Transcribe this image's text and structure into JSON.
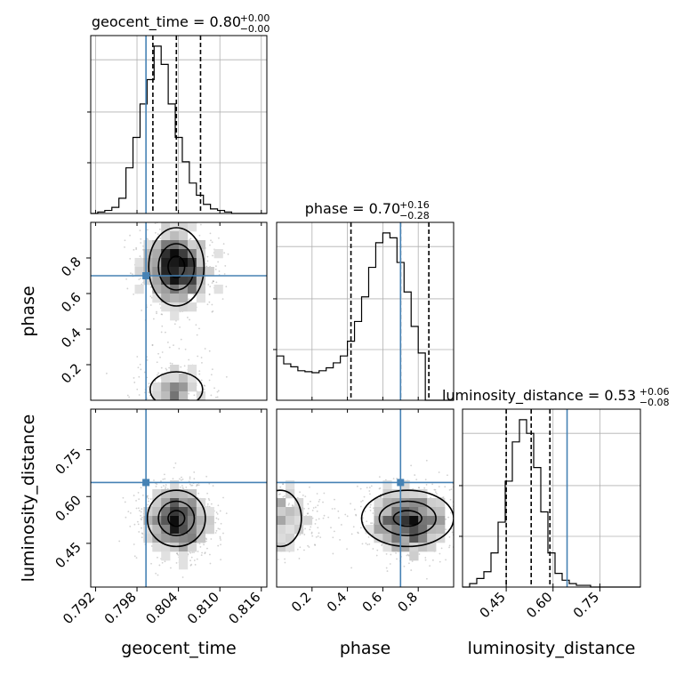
{
  "chart_data": {
    "type": "corner",
    "parameters": [
      "geocent_time",
      "phase",
      "luminosity_distance"
    ],
    "injected_values": {
      "geocent_time": 0.7993,
      "phase": 0.7,
      "luminosity_distance": 0.645
    },
    "titles": [
      {
        "param": "geocent_time",
        "text": "geocent_time = 0.80",
        "upper": "+0.00",
        "lower": "−0.00"
      },
      {
        "param": "phase",
        "text": "phase = 0.70",
        "upper": "+0.16",
        "lower": "−0.28"
      },
      {
        "param": "luminosity_distance",
        "text": "luminosity_distance = 0.53",
        "upper": "+0.06",
        "lower": "−0.08"
      }
    ],
    "axes": {
      "geocent_time": {
        "range": [
          0.7913,
          0.8168
        ],
        "ticks": [
          0.792,
          0.798,
          0.804,
          0.81,
          0.816
        ],
        "tick_labels": [
          "0.792",
          "0.798",
          "0.804",
          "0.810",
          "0.816"
        ],
        "label": "geocent_time"
      },
      "phase": {
        "range": [
          0.0,
          1.0
        ],
        "ticks": [
          0.2,
          0.4,
          0.6,
          0.8
        ],
        "tick_labels": [
          "0.2",
          "0.4",
          "0.6",
          "0.8"
        ],
        "label": "phase"
      },
      "luminosity_distance": {
        "range": [
          0.31,
          0.88
        ],
        "ticks": [
          0.45,
          0.6,
          0.75
        ],
        "tick_labels": [
          "0.45",
          "0.60",
          "0.75"
        ],
        "label": "luminosity_distance"
      }
    },
    "quantile_lines": {
      "geocent_time": [
        0.8003,
        0.8037,
        0.8072
      ],
      "phase": [
        0.42,
        0.7,
        0.86
      ],
      "luminosity_distance": [
        0.45,
        0.53,
        0.59
      ]
    },
    "histograms": {
      "geocent_time": {
        "edges_start": 0.7913,
        "bin_width": 0.00102,
        "counts": [
          0,
          1,
          2,
          4,
          10,
          30,
          50,
          72,
          88,
          110,
          98,
          72,
          50,
          34,
          20,
          12,
          6,
          3,
          2,
          1,
          0,
          0,
          0,
          0,
          0
        ]
      },
      "phase": {
        "edges_start": 0.0,
        "bin_width": 0.04,
        "counts": [
          45,
          37,
          34,
          30,
          29,
          28,
          30,
          33,
          38,
          45,
          60,
          80,
          105,
          135,
          160,
          170,
          165,
          140,
          110,
          75,
          48,
          0,
          0,
          0,
          0
        ]
      },
      "luminosity_distance": {
        "edges_start": 0.31,
        "bin_width": 0.0228,
        "counts": [
          0,
          2,
          5,
          9,
          20,
          38,
          62,
          85,
          98,
          90,
          70,
          44,
          20,
          8,
          4,
          2,
          1,
          1,
          0,
          0,
          0,
          0,
          0,
          0,
          0
        ]
      }
    },
    "grid": true,
    "series_color": "#000000",
    "truth_color": "#4682b4",
    "grid_color": "#b0b0b0"
  }
}
